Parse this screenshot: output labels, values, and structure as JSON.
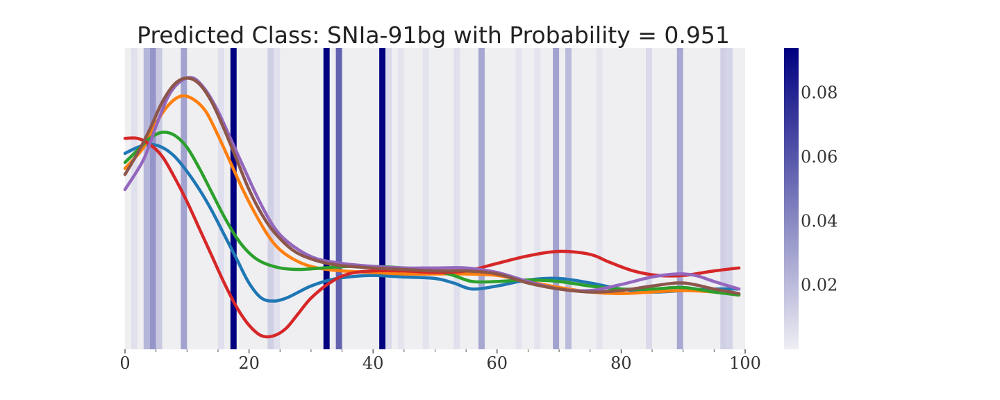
{
  "chart_data": {
    "type": "line",
    "title": "Predicted Class: SNIa-91bg with Probability = 0.951",
    "xlabel": "",
    "ylabel": "",
    "xlim": [
      0,
      100
    ],
    "x_ticks": [
      0,
      20,
      40,
      60,
      80,
      100
    ],
    "x_minor_ticks": [
      5,
      10,
      15,
      25,
      30,
      35,
      45,
      50,
      55,
      65,
      70,
      75,
      85,
      90,
      95
    ],
    "y_ticks_shown": false,
    "background_color": "#efeff2",
    "attention_bands": {
      "description_colorbar_range": [
        0.0,
        0.094
      ],
      "bin_width": 1,
      "values": [
        [
          1,
          0.005
        ],
        [
          3,
          0.022
        ],
        [
          4,
          0.035
        ],
        [
          5,
          0.015
        ],
        [
          9,
          0.03
        ],
        [
          15,
          0.006
        ],
        [
          17,
          0.094
        ],
        [
          23,
          0.012
        ],
        [
          24,
          0.005
        ],
        [
          32,
          0.094
        ],
        [
          34,
          0.055
        ],
        [
          41,
          0.094
        ],
        [
          42,
          0.008
        ],
        [
          44,
          0.004
        ],
        [
          48,
          0.004
        ],
        [
          53,
          0.006
        ],
        [
          57,
          0.028
        ],
        [
          63,
          0.004
        ],
        [
          66,
          0.004
        ],
        [
          69,
          0.03
        ],
        [
          71,
          0.02
        ],
        [
          76,
          0.004
        ],
        [
          84,
          0.008
        ],
        [
          89,
          0.028
        ],
        [
          96,
          0.012
        ],
        [
          97,
          0.01
        ]
      ]
    },
    "colorbar": {
      "range": [
        0.0,
        0.094
      ],
      "ticks": [
        "0.02",
        "0.04",
        "0.06",
        "0.08"
      ],
      "tick_values": [
        0.02,
        0.04,
        0.06,
        0.08
      ],
      "color_low": "#eeeef4",
      "color_high": "#000080"
    },
    "series": [
      {
        "color": "#1f77b4",
        "points": [
          [
            0,
            0.65
          ],
          [
            2,
            0.67
          ],
          [
            4,
            0.68
          ],
          [
            6,
            0.67
          ],
          [
            8,
            0.64
          ],
          [
            10,
            0.59
          ],
          [
            12,
            0.53
          ],
          [
            14,
            0.46
          ],
          [
            16,
            0.38
          ],
          [
            18,
            0.3
          ],
          [
            20,
            0.22
          ],
          [
            22,
            0.17
          ],
          [
            24,
            0.16
          ],
          [
            26,
            0.17
          ],
          [
            28,
            0.19
          ],
          [
            30,
            0.21
          ],
          [
            33,
            0.23
          ],
          [
            36,
            0.24
          ],
          [
            40,
            0.245
          ],
          [
            45,
            0.24
          ],
          [
            50,
            0.235
          ],
          [
            53,
            0.22
          ],
          [
            56,
            0.2
          ],
          [
            60,
            0.21
          ],
          [
            65,
            0.23
          ],
          [
            70,
            0.235
          ],
          [
            75,
            0.22
          ],
          [
            80,
            0.2
          ],
          [
            85,
            0.19
          ],
          [
            90,
            0.195
          ],
          [
            95,
            0.2
          ],
          [
            99,
            0.2
          ]
        ]
      },
      {
        "color": "#ff7f0e",
        "points": [
          [
            0,
            0.6
          ],
          [
            3,
            0.67
          ],
          [
            5,
            0.75
          ],
          [
            7,
            0.81
          ],
          [
            9,
            0.84
          ],
          [
            11,
            0.83
          ],
          [
            13,
            0.79
          ],
          [
            15,
            0.71
          ],
          [
            17,
            0.62
          ],
          [
            19,
            0.53
          ],
          [
            21,
            0.45
          ],
          [
            23,
            0.38
          ],
          [
            25,
            0.33
          ],
          [
            28,
            0.29
          ],
          [
            31,
            0.27
          ],
          [
            35,
            0.26
          ],
          [
            40,
            0.255
          ],
          [
            45,
            0.25
          ],
          [
            50,
            0.25
          ],
          [
            55,
            0.25
          ],
          [
            60,
            0.245
          ],
          [
            65,
            0.225
          ],
          [
            70,
            0.205
          ],
          [
            75,
            0.19
          ],
          [
            80,
            0.185
          ],
          [
            85,
            0.19
          ],
          [
            90,
            0.195
          ],
          [
            95,
            0.19
          ],
          [
            99,
            0.18
          ]
        ]
      },
      {
        "color": "#2ca02c",
        "points": [
          [
            0,
            0.62
          ],
          [
            2,
            0.66
          ],
          [
            4,
            0.7
          ],
          [
            6,
            0.72
          ],
          [
            8,
            0.71
          ],
          [
            10,
            0.67
          ],
          [
            12,
            0.6
          ],
          [
            14,
            0.52
          ],
          [
            16,
            0.44
          ],
          [
            18,
            0.37
          ],
          [
            20,
            0.32
          ],
          [
            22,
            0.29
          ],
          [
            25,
            0.27
          ],
          [
            28,
            0.265
          ],
          [
            32,
            0.27
          ],
          [
            36,
            0.275
          ],
          [
            40,
            0.275
          ],
          [
            45,
            0.27
          ],
          [
            50,
            0.26
          ],
          [
            53,
            0.245
          ],
          [
            56,
            0.225
          ],
          [
            60,
            0.225
          ],
          [
            65,
            0.23
          ],
          [
            70,
            0.225
          ],
          [
            75,
            0.21
          ],
          [
            80,
            0.2
          ],
          [
            85,
            0.2
          ],
          [
            90,
            0.205
          ],
          [
            95,
            0.19
          ],
          [
            99,
            0.18
          ]
        ]
      },
      {
        "color": "#d62728",
        "points": [
          [
            0,
            0.7
          ],
          [
            2,
            0.7
          ],
          [
            4,
            0.68
          ],
          [
            6,
            0.64
          ],
          [
            8,
            0.57
          ],
          [
            10,
            0.49
          ],
          [
            12,
            0.4
          ],
          [
            14,
            0.31
          ],
          [
            16,
            0.22
          ],
          [
            18,
            0.14
          ],
          [
            20,
            0.08
          ],
          [
            22,
            0.045
          ],
          [
            24,
            0.045
          ],
          [
            26,
            0.07
          ],
          [
            28,
            0.12
          ],
          [
            30,
            0.17
          ],
          [
            33,
            0.22
          ],
          [
            36,
            0.25
          ],
          [
            40,
            0.26
          ],
          [
            45,
            0.26
          ],
          [
            50,
            0.255
          ],
          [
            55,
            0.26
          ],
          [
            60,
            0.285
          ],
          [
            65,
            0.31
          ],
          [
            70,
            0.325
          ],
          [
            75,
            0.315
          ],
          [
            78,
            0.29
          ],
          [
            82,
            0.26
          ],
          [
            86,
            0.245
          ],
          [
            90,
            0.245
          ],
          [
            95,
            0.26
          ],
          [
            99,
            0.27
          ]
        ]
      },
      {
        "color": "#9467bd",
        "points": [
          [
            0,
            0.53
          ],
          [
            3,
            0.63
          ],
          [
            5,
            0.74
          ],
          [
            7,
            0.84
          ],
          [
            9,
            0.89
          ],
          [
            11,
            0.9
          ],
          [
            13,
            0.86
          ],
          [
            15,
            0.79
          ],
          [
            17,
            0.7
          ],
          [
            19,
            0.61
          ],
          [
            21,
            0.52
          ],
          [
            23,
            0.44
          ],
          [
            25,
            0.38
          ],
          [
            28,
            0.33
          ],
          [
            31,
            0.3
          ],
          [
            35,
            0.285
          ],
          [
            40,
            0.275
          ],
          [
            45,
            0.27
          ],
          [
            50,
            0.27
          ],
          [
            55,
            0.27
          ],
          [
            60,
            0.255
          ],
          [
            65,
            0.225
          ],
          [
            70,
            0.2
          ],
          [
            75,
            0.195
          ],
          [
            80,
            0.215
          ],
          [
            85,
            0.24
          ],
          [
            89,
            0.25
          ],
          [
            92,
            0.245
          ],
          [
            95,
            0.225
          ],
          [
            99,
            0.2
          ]
        ]
      },
      {
        "color": "#8c564b",
        "points": [
          [
            0,
            0.58
          ],
          [
            2,
            0.65
          ],
          [
            4,
            0.73
          ],
          [
            6,
            0.82
          ],
          [
            8,
            0.88
          ],
          [
            10,
            0.9
          ],
          [
            12,
            0.88
          ],
          [
            14,
            0.82
          ],
          [
            16,
            0.73
          ],
          [
            18,
            0.63
          ],
          [
            20,
            0.53
          ],
          [
            22,
            0.45
          ],
          [
            24,
            0.39
          ],
          [
            27,
            0.33
          ],
          [
            30,
            0.3
          ],
          [
            34,
            0.28
          ],
          [
            40,
            0.27
          ],
          [
            45,
            0.265
          ],
          [
            50,
            0.26
          ],
          [
            55,
            0.26
          ],
          [
            60,
            0.25
          ],
          [
            65,
            0.22
          ],
          [
            70,
            0.2
          ],
          [
            75,
            0.19
          ],
          [
            80,
            0.195
          ],
          [
            85,
            0.21
          ],
          [
            90,
            0.22
          ],
          [
            95,
            0.2
          ],
          [
            99,
            0.185
          ]
        ]
      }
    ]
  }
}
